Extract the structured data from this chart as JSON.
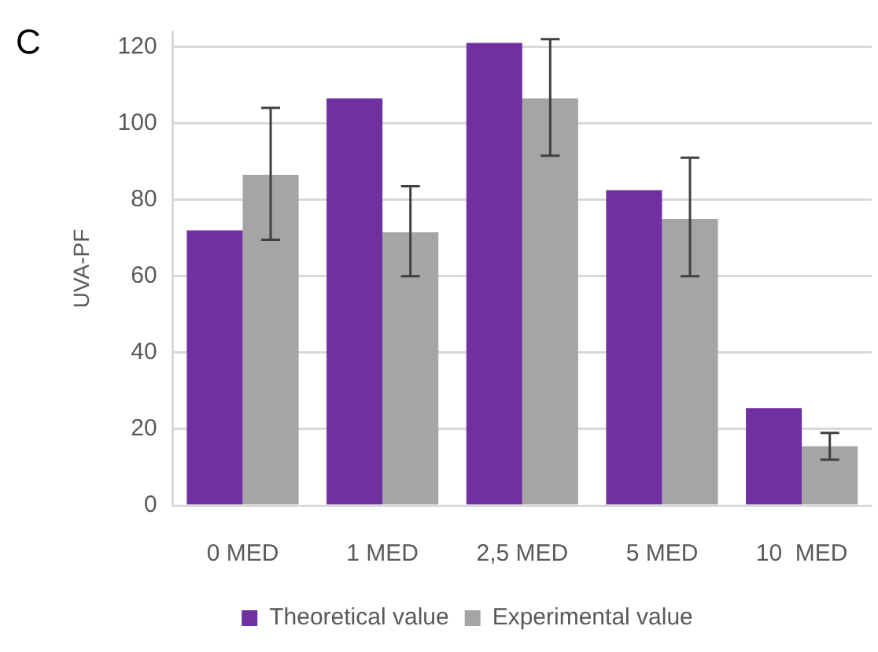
{
  "chart_data": {
    "type": "bar",
    "ylabel": "UVA-PF",
    "annotations": [
      "C"
    ],
    "categories": [
      "0 MED",
      "1 MED",
      "2,5 MED",
      "5 MED",
      "10  MED"
    ],
    "series": [
      {
        "name": "Theoretical value",
        "color": "#7030a0",
        "values": [
          72,
          106.5,
          121,
          82.5,
          25.5
        ]
      },
      {
        "name": "Experimental value",
        "color": "#a5a5a5",
        "values": [
          86.5,
          71.5,
          106.5,
          75,
          15.5
        ],
        "errors": [
          [
            69.5,
            104
          ],
          [
            60,
            83.5
          ],
          [
            91.5,
            122
          ],
          [
            60,
            91
          ],
          [
            12,
            19
          ]
        ]
      }
    ],
    "ylim": [
      0,
      124
    ],
    "yticks": [
      0,
      20,
      40,
      60,
      80,
      100,
      120
    ],
    "grid": "y",
    "legend": "bottom"
  }
}
